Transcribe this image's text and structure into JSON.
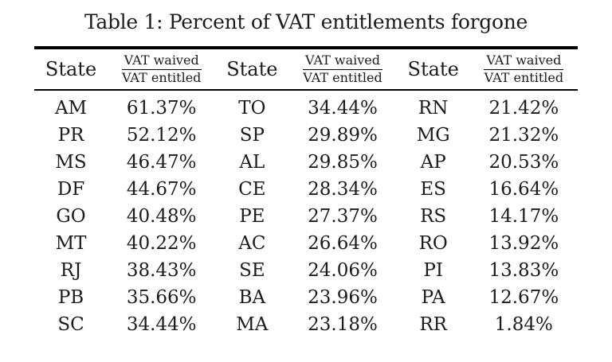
{
  "caption": "Table 1: Percent of VAT entitlements forgone",
  "table": {
    "header": {
      "state": "State",
      "ratio_numerator": "VAT waived",
      "ratio_denominator": "VAT entitled"
    },
    "rows": [
      [
        "AM",
        "61.37%",
        "TO",
        "34.44%",
        "RN",
        "21.42%"
      ],
      [
        "PR",
        "52.12%",
        "SP",
        "29.89%",
        "MG",
        "21.32%"
      ],
      [
        "MS",
        "46.47%",
        "AL",
        "29.85%",
        "AP",
        "20.53%"
      ],
      [
        "DF",
        "44.67%",
        "CE",
        "28.34%",
        "ES",
        "16.64%"
      ],
      [
        "GO",
        "40.48%",
        "PE",
        "27.37%",
        "RS",
        "14.17%"
      ],
      [
        "MT",
        "40.22%",
        "AC",
        "26.64%",
        "RO",
        "13.92%"
      ],
      [
        "RJ",
        "38.43%",
        "SE",
        "24.06%",
        "PI",
        "13.83%"
      ],
      [
        "PB",
        "35.66%",
        "BA",
        "23.96%",
        "PA",
        "12.67%"
      ],
      [
        "SC",
        "34.44%",
        "MA",
        "23.18%",
        "RR",
        "1.84%"
      ]
    ]
  },
  "colors": {
    "text": "#1b1b1b",
    "rule": "#000000",
    "background": "#ffffff"
  }
}
